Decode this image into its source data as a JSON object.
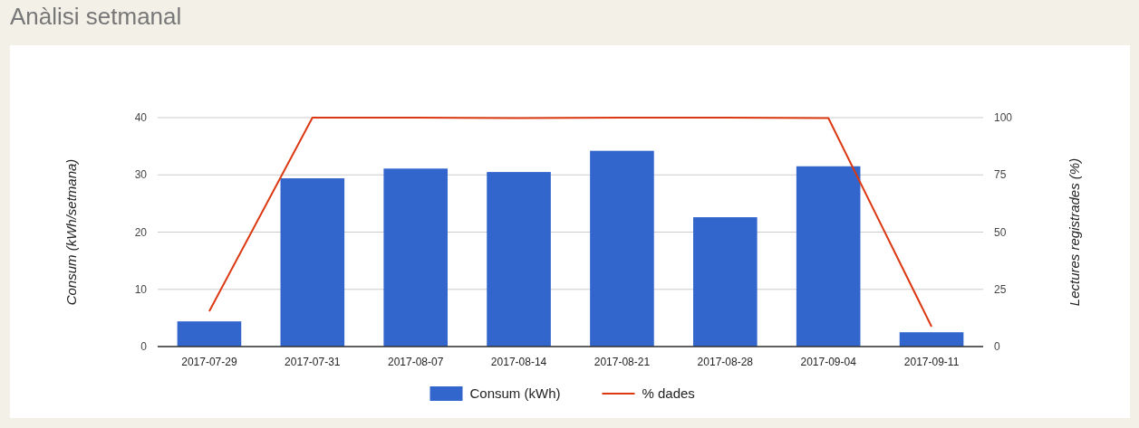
{
  "chart_data": {
    "type": "bar",
    "title": "Anàlisi setmanal",
    "ylabel": "Consum (kWh/setmana)",
    "y2label": "Lectures registrades (%)",
    "categories": [
      "2017-07-29",
      "2017-07-31",
      "2017-08-07",
      "2017-08-14",
      "2017-08-21",
      "2017-08-28",
      "2017-09-04",
      "2017-09-11"
    ],
    "series": [
      {
        "name": "Consum (kWh)",
        "color": "#3366cc",
        "values": [
          4.4,
          29.4,
          31.1,
          30.5,
          34.2,
          22.6,
          31.5,
          2.5
        ]
      },
      {
        "name": "% dades",
        "type": "line",
        "axis": "y2",
        "color": "#dc3912",
        "values": [
          15.4,
          100,
          100,
          99.8,
          100,
          100,
          99.8,
          8.7
        ]
      }
    ],
    "ylim": [
      0,
      40
    ],
    "yticks": [
      0,
      10,
      20,
      30,
      40
    ],
    "y2lim": [
      0,
      100
    ],
    "y2ticks": [
      0,
      25,
      50,
      75,
      100
    ],
    "grid": "y",
    "legend": "bottom",
    "marker": "none",
    "line_style": "solid"
  }
}
